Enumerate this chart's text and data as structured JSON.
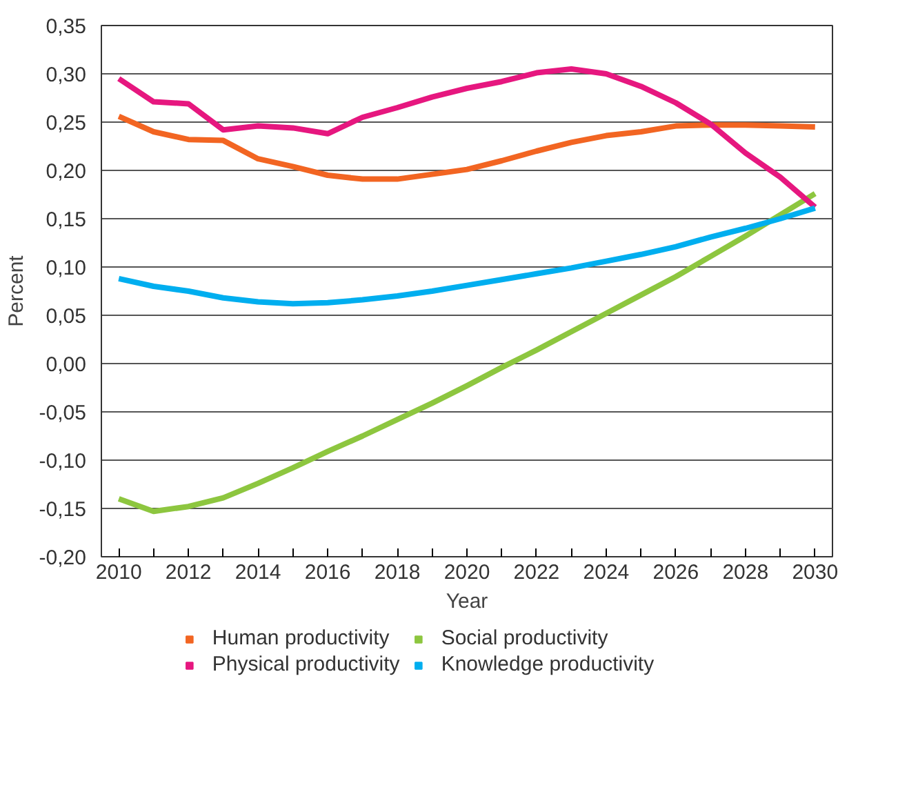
{
  "chart_data": {
    "type": "line",
    "xlabel": "Year",
    "ylabel": "Percent",
    "categories": [
      "2010",
      null,
      "2012",
      null,
      "2014",
      null,
      "2016",
      null,
      "2018",
      null,
      "2020",
      null,
      "2022",
      null,
      "2024",
      null,
      "2026",
      null,
      "2028",
      null,
      "2030"
    ],
    "series": [
      {
        "name": "Human productivity",
        "color": "#f26522",
        "values": [
          0.256,
          0.24,
          0.232,
          0.231,
          0.212,
          0.204,
          0.195,
          0.191,
          0.191,
          0.196,
          0.201,
          0.21,
          0.22,
          0.229,
          0.236,
          0.24,
          0.246,
          0.247,
          0.247,
          0.246,
          0.245
        ]
      },
      {
        "name": "Social productivity",
        "color": "#8dc63f",
        "values": [
          -0.14,
          -0.153,
          -0.148,
          -0.139,
          -0.124,
          -0.108,
          -0.091,
          -0.075,
          -0.058,
          -0.041,
          -0.023,
          -0.004,
          0.014,
          0.033,
          0.052,
          0.071,
          0.09,
          0.111,
          0.132,
          0.154,
          0.176
        ]
      },
      {
        "name": "Physical productivity",
        "color": "#e6177f",
        "values": [
          0.295,
          0.271,
          0.269,
          0.242,
          0.246,
          0.244,
          0.238,
          0.255,
          0.265,
          0.276,
          0.285,
          0.292,
          0.301,
          0.305,
          0.3,
          0.287,
          0.27,
          0.248,
          0.218,
          0.193,
          0.162
        ]
      },
      {
        "name": "Knowledge productivity",
        "color": "#00aeef",
        "values": [
          0.088,
          0.08,
          0.075,
          0.068,
          0.064,
          0.062,
          0.063,
          0.066,
          0.07,
          0.075,
          0.081,
          0.087,
          0.093,
          0.099,
          0.106,
          0.113,
          0.121,
          0.131,
          0.14,
          0.15,
          0.161
        ]
      }
    ],
    "ylim": [
      -0.2,
      0.35
    ],
    "yticks": [
      {
        "value": -0.2,
        "label": "-0,20"
      },
      {
        "value": -0.15,
        "label": "-0,15"
      },
      {
        "value": -0.1,
        "label": "-0,10"
      },
      {
        "value": -0.05,
        "label": "-0,05"
      },
      {
        "value": 0,
        "label": "0,00"
      },
      {
        "value": 0.05,
        "label": "0,05"
      },
      {
        "value": 0.1,
        "label": "0,10"
      },
      {
        "value": 0.15,
        "label": "0,15"
      },
      {
        "value": 0.2,
        "label": "0,20"
      },
      {
        "value": 0.25,
        "label": "0,25"
      },
      {
        "value": 0.3,
        "label": "0,30"
      },
      {
        "value": 0.35,
        "label": "0,35"
      }
    ],
    "grid": "y",
    "legend": "bottom",
    "marker": "none",
    "line_style": "solid"
  }
}
